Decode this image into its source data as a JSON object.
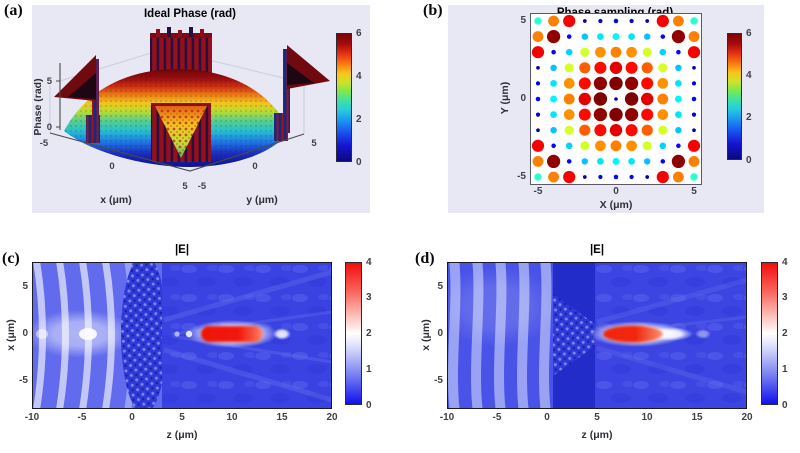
{
  "colors": {
    "panel_background": "#e7e8f4",
    "heatmap_base_blue": "#3e47e3",
    "focal_red": "#f21208",
    "jet_top": "#7a0403",
    "jet_bottom": "#090980"
  },
  "labels": {
    "a": "(a)",
    "b": "(b)",
    "c": "(c)",
    "d": "(d)"
  },
  "panels": {
    "a": {
      "title": "Ideal Phase (rad)",
      "xlabel": "x (μm)",
      "ylabel": "y (μm)",
      "zlabel": "Phase (rad)",
      "x_ticks": [
        "-5",
        "0",
        "5"
      ],
      "y_ticks": [
        "-5",
        "0",
        "5"
      ],
      "z_ticks": [
        "5",
        "0"
      ],
      "colorbar": {
        "ticks": [
          "6",
          "4",
          "2",
          "0"
        ]
      }
    },
    "b": {
      "title": "Phase sampling (rad)",
      "xlabel": "X (μm)",
      "ylabel": "Y (μm)",
      "x_ticks": [
        "-5",
        "0",
        "5"
      ],
      "y_ticks": [
        "5",
        "0",
        "-5"
      ],
      "colorbar": {
        "ticks": [
          "6",
          "4",
          "2",
          "0"
        ]
      }
    },
    "c": {
      "title": "|E|",
      "xlabel": "z (μm)",
      "ylabel": "x (μm)",
      "x_ticks": [
        "-10",
        "-5",
        "0",
        "5",
        "10",
        "15",
        "20"
      ],
      "y_ticks": [
        "5",
        "0",
        "-5"
      ],
      "colorbar": {
        "ticks": [
          "4",
          "3",
          "2",
          "1",
          "0"
        ]
      }
    },
    "d": {
      "title": "|E|",
      "xlabel": "z (μm)",
      "ylabel": "x (μm)",
      "x_ticks": [
        "-10",
        "-5",
        "0",
        "5",
        "10",
        "15",
        "20"
      ],
      "y_ticks": [
        "5",
        "0",
        "-5"
      ],
      "colorbar": {
        "ticks": [
          "4",
          "3",
          "2",
          "1",
          "0"
        ]
      }
    }
  },
  "chart_data": [
    {
      "id": "a",
      "type": "heatmap",
      "subtype": "3d-surface",
      "title": "Ideal Phase (rad)",
      "xlabel": "x (μm)",
      "ylabel": "y (μm)",
      "zlabel": "Phase (rad)",
      "x_range": [
        -5,
        5
      ],
      "y_range": [
        -5,
        5
      ],
      "z_ticks": [
        0,
        5
      ],
      "clim": [
        0,
        6
      ],
      "colormap": "jet",
      "description": "Radially symmetric lens phase dome peaking near 6 rad at the center and falling toward 0 at radius ~5 μm, with 2π phase-wrap striped walls rising at the four corners of the square aperture (back wall, front V-notched wall, and left/right spikes)."
    },
    {
      "id": "b",
      "type": "scatter",
      "title": "Phase sampling (rad)",
      "xlabel": "X (μm)",
      "ylabel": "Y (μm)",
      "x": [
        -5,
        -4,
        -3,
        -2,
        -1,
        0,
        1,
        2,
        3,
        4,
        5
      ],
      "y": [
        5,
        4,
        3,
        2,
        1,
        0,
        -1,
        -2,
        -3,
        -4,
        -5
      ],
      "values": [
        [
          2.5,
          4.5,
          5.3,
          0.3,
          0.6,
          0.8,
          0.6,
          0.3,
          5.3,
          4.5,
          2.5
        ],
        [
          4.5,
          5.9,
          0.8,
          1.9,
          2.1,
          2.2,
          2.1,
          1.9,
          0.8,
          5.9,
          4.5
        ],
        [
          5.3,
          0.8,
          2.0,
          3.5,
          4.4,
          4.5,
          4.4,
          3.5,
          2.0,
          0.8,
          5.3
        ],
        [
          0.3,
          1.9,
          3.5,
          4.7,
          5.2,
          5.4,
          5.2,
          4.7,
          3.5,
          1.9,
          0.3
        ],
        [
          0.6,
          2.1,
          4.4,
          5.2,
          5.9,
          6.0,
          5.9,
          5.2,
          4.4,
          2.1,
          0.6
        ],
        [
          0.8,
          2.2,
          4.5,
          5.4,
          6.0,
          0.2,
          6.0,
          5.4,
          4.5,
          2.2,
          0.8
        ],
        [
          0.6,
          2.1,
          4.4,
          5.2,
          5.9,
          6.0,
          5.9,
          5.2,
          4.4,
          2.1,
          0.6
        ],
        [
          0.3,
          1.9,
          3.5,
          4.7,
          5.2,
          5.4,
          5.2,
          4.7,
          3.5,
          1.9,
          0.3
        ],
        [
          5.3,
          0.8,
          2.0,
          3.5,
          4.4,
          4.5,
          4.4,
          3.5,
          2.0,
          0.8,
          5.3
        ],
        [
          4.5,
          5.9,
          0.8,
          1.9,
          2.1,
          2.2,
          2.1,
          1.9,
          0.8,
          5.9,
          4.5
        ],
        [
          2.5,
          4.5,
          5.3,
          0.3,
          0.6,
          0.8,
          0.6,
          0.3,
          5.3,
          4.5,
          2.5
        ]
      ],
      "clim": [
        0,
        6
      ],
      "colormap": "jet",
      "marker": "filled circle; size and color both proportional to sampled phase"
    },
    {
      "id": "c",
      "type": "heatmap",
      "title": "|E|",
      "xlabel": "z (μm)",
      "ylabel": "x (μm)",
      "x_range": [
        -10,
        20
      ],
      "y_range": [
        -7.8,
        7.8
      ],
      "clim": [
        0,
        4
      ],
      "colormap": "blue-white-red",
      "features": {
        "incident_region": "curved converging wavefronts for z < 3 μm, fringe period ≈ 2.3 μm, brightest on the optical axis near z ≈ -4.6",
        "metasurface_interface_z": 3,
        "focal_spot": {
          "z_center": 10,
          "z_extent": [
            6.8,
            13.2
          ],
          "x_center": 0,
          "peak_amplitude": 4
        },
        "secondary_lobe": {
          "z_center": 15,
          "amplitude": 2
        }
      }
    },
    {
      "id": "d",
      "type": "heatmap",
      "title": "|E|",
      "xlabel": "z (μm)",
      "ylabel": "x (μm)",
      "x_range": [
        -10,
        20
      ],
      "y_range": [
        -7.8,
        7.8
      ],
      "clim": [
        0,
        4
      ],
      "colormap": "blue-white-red",
      "features": {
        "incident_region": "vertical plane-wave fringes for z < 0.5 μm, fringe period ≈ 2.3 μm",
        "metasurface_interface_z": 0.5,
        "focal_spot": {
          "z_center": 9,
          "z_extent": [
            6,
            12
          ],
          "x_center": 0,
          "peak_amplitude": 4
        },
        "secondary_lobe": {
          "z_center": 15.5,
          "amplitude": 1.5
        }
      }
    }
  ]
}
